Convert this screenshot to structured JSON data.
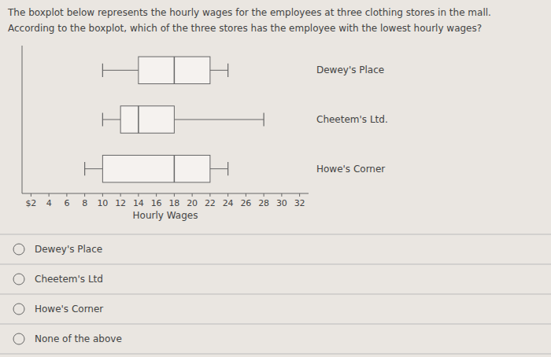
{
  "chart_data": {
    "type": "boxplot",
    "orientation": "horizontal",
    "title": "The boxplot below represents the hourly wages for the employees at three clothing stores in the mall.",
    "subtitle": "According to the boxplot, which of the three stores has the employee with the lowest hourly wages?",
    "categories": [
      "Dewey's Place",
      "Cheetem's Ltd.",
      "Howe's Corner"
    ],
    "boxes": [
      {
        "min": 10,
        "q1": 14,
        "median": 18,
        "q3": 22,
        "max": 24
      },
      {
        "min": 10,
        "q1": 12,
        "median": 14,
        "q3": 18,
        "max": 28
      },
      {
        "min": 8,
        "q1": 10,
        "median": 18,
        "q3": 22,
        "max": 24
      }
    ],
    "color": "#f5f2ef",
    "xlim": [
      1,
      33
    ],
    "xticks": [
      {
        "value": 2,
        "label": "$2"
      },
      4,
      6,
      8,
      10,
      12,
      14,
      16,
      18,
      20,
      22,
      24,
      26,
      28,
      30,
      32
    ],
    "xlabel": "Hourly Wages",
    "options": [
      "Dewey's Place",
      "Cheetem's Ltd",
      "Howe's Corner",
      "None of the above"
    ]
  }
}
